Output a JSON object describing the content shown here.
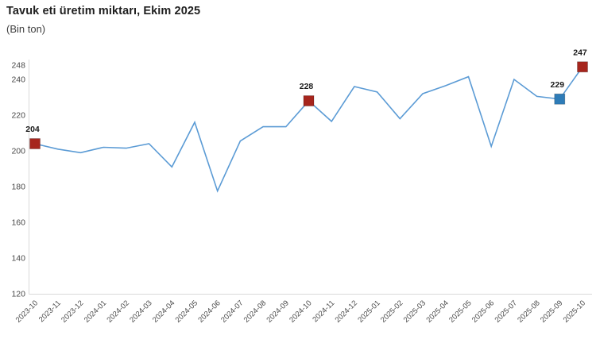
{
  "title": "Tavuk eti üretim miktarı, Ekim 2025",
  "subtitle": "(Bin ton)",
  "chart_data": {
    "type": "line",
    "title": "Tavuk eti üretim miktarı, Ekim 2025",
    "subtitle": "(Bin ton)",
    "categories": [
      "2023-10",
      "2023-11",
      "2023-12",
      "2024-01",
      "2024-02",
      "2024-03",
      "2024-04",
      "2024-05",
      "2024-06",
      "2024-07",
      "2024-08",
      "2024-09",
      "2024-10",
      "2024-11",
      "2024-12",
      "2025-01",
      "2025-02",
      "2025-03",
      "2025-04",
      "2025-05",
      "2025-06",
      "2025-07",
      "2025-08",
      "2025-09",
      "2025-10"
    ],
    "values": [
      204,
      201,
      199,
      202,
      201.5,
      204,
      191,
      216,
      177.5,
      205.5,
      213.5,
      213.5,
      228,
      216.5,
      236,
      233,
      218,
      232,
      236.5,
      241.5,
      202.5,
      240,
      230.5,
      229,
      247
    ],
    "labeled_points": [
      {
        "index": 0,
        "label": "204",
        "color": "#a6251d"
      },
      {
        "index": 12,
        "label": "228",
        "color": "#a6251d"
      },
      {
        "index": 23,
        "label": "229",
        "color": "#2e7cb8"
      },
      {
        "index": 24,
        "label": "247",
        "color": "#a6251d"
      }
    ],
    "y_ticks": [
      120,
      140,
      160,
      180,
      200,
      220,
      240,
      248
    ],
    "ylim": [
      120,
      248
    ],
    "xlabel": "",
    "ylabel": "",
    "grid": false,
    "legend": false,
    "line_color": "#5b9bd5",
    "marker_red": "#a6251d",
    "marker_blue": "#2e7cb8",
    "axis_color": "#d9d9d9",
    "tick_label_color": "#4a4a4a",
    "point_label_color": "#1a1a1a"
  }
}
